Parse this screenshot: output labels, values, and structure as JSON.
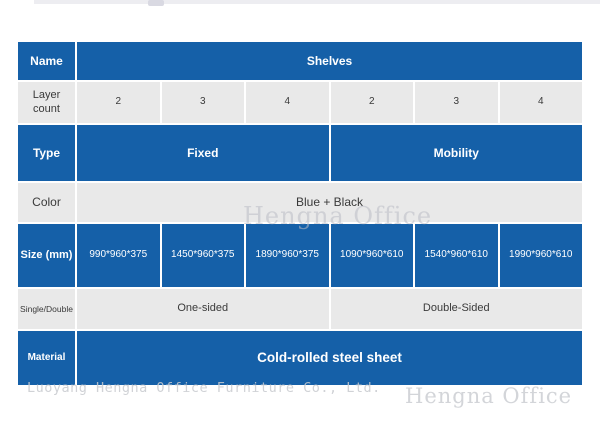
{
  "colors": {
    "header_blue": "#1560a8",
    "light_row_gray": "#e9e9e9",
    "dark_text": "#3a3a3a",
    "watermark_gray": "#c8cacf"
  },
  "table": {
    "rows": [
      {
        "label": "Name",
        "cells": [
          "Shelves"
        ]
      },
      {
        "label": "Layer count",
        "cells": [
          "2",
          "3",
          "4",
          "2",
          "3",
          "4"
        ]
      },
      {
        "label": "Type",
        "cells": [
          "Fixed",
          "Mobility"
        ]
      },
      {
        "label": "Color",
        "cells": [
          "Blue + Black"
        ]
      },
      {
        "label": "Size (mm)",
        "cells": [
          "990*960*375",
          "1450*960*375",
          "1890*960*375",
          "1090*960*610",
          "1540*960*610",
          "1990*960*610"
        ]
      },
      {
        "label": "Single/Double",
        "cells": [
          "One-sided",
          "Double-Sided"
        ]
      },
      {
        "label": "Material",
        "cells": [
          "Cold-rolled steel sheet"
        ]
      }
    ]
  },
  "watermarks": {
    "center": "Hengna Office",
    "company_line": "Luoyang Hengna Office Furniture Co., Ltd.",
    "bottom_right": "Hengna Office"
  }
}
